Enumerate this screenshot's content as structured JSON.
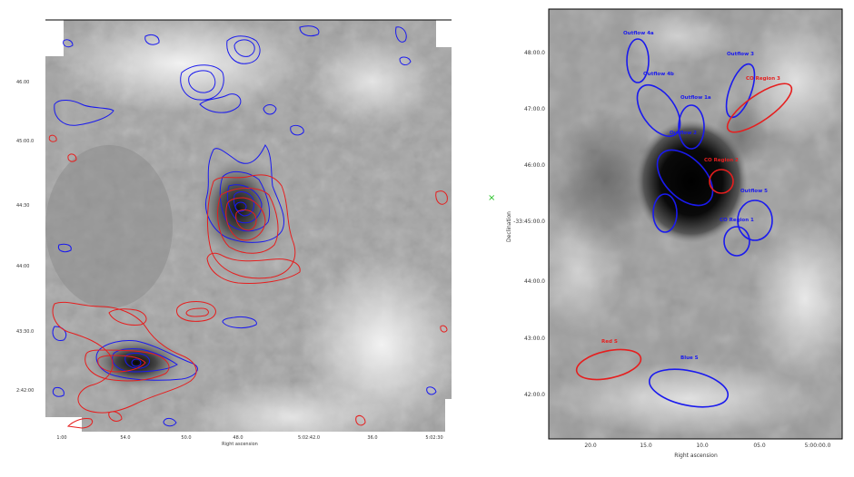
{
  "left_panel": {
    "x_axis_label": "Right ascension",
    "x_ticks": [
      "1:00",
      "54.0",
      "50.0",
      "48.0",
      "5:02:42.0",
      "36.0",
      "5:02:30"
    ],
    "y_ticks": [
      "46.00",
      "45:00.0",
      "44:30",
      "44:00",
      "43:30.0",
      "2:42:00"
    ]
  },
  "right_panel": {
    "x_axis_label": "Right ascension",
    "y_axis_label": "Declination",
    "x_ticks": [
      "20.0",
      "15.0",
      "10.0",
      "05.0",
      "5:00:00.0"
    ],
    "y_ticks": [
      "48:00.0",
      "47:00.0",
      "46:00.0",
      "-33:45:00.0",
      "44:00.0",
      "43:00.0",
      "42:00.0"
    ],
    "labels": {
      "outflow_4a": "Outflow 4a",
      "outflow_4b": "Outflow 4b",
      "outflow_1a": "Outflow 1a",
      "outflow_2": "Outflow 2",
      "outflow_3": "Outflow 3",
      "outflow_5": "Outflow 5",
      "co_region_1": "CO Region 1",
      "co_region_2": "CO Region 2",
      "co_region_3": "CO Region 3",
      "red_s": "Red S",
      "blue_s": "Blue S"
    }
  },
  "marker": "×",
  "colors": {
    "blue": "#1a1aee",
    "red": "#e61e1e",
    "marker": "#22c022"
  }
}
